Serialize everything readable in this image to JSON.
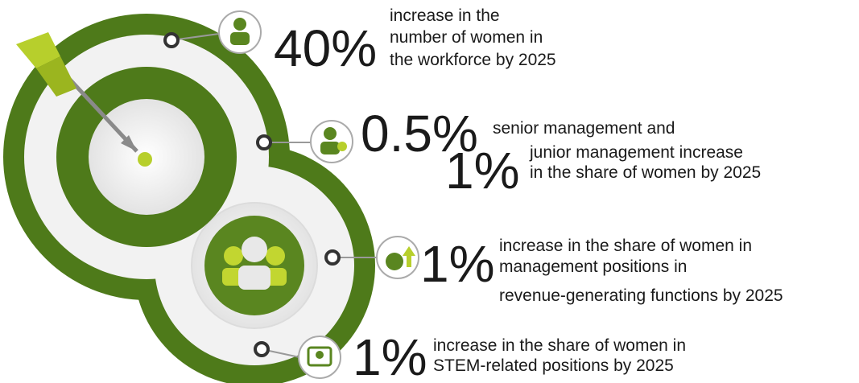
{
  "items": [
    {
      "stat": "40%",
      "lines": [
        "increase in the",
        "number of women in",
        "the workforce by 2025"
      ]
    },
    {
      "stat": "0.5%",
      "lines": [
        "senior management and"
      ]
    },
    {
      "stat": "1%",
      "lines": [
        "junior management increase",
        "in the share of women by 2025"
      ]
    },
    {
      "stat": "1%",
      "lines": [
        "increase in the share of women in",
        "management positions in",
        "revenue-generating functions by 2025"
      ]
    },
    {
      "stat": "1%",
      "lines": [
        "increase in the share of women in",
        "STEM-related positions by 2025"
      ]
    }
  ]
}
